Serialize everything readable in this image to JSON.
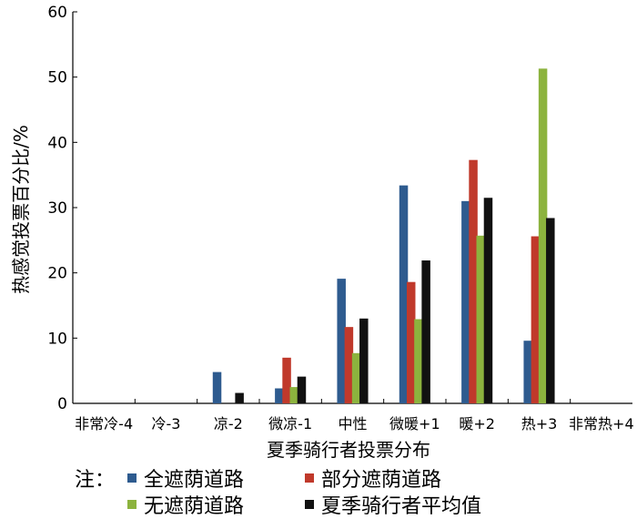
{
  "chart_data": {
    "type": "bar",
    "title": "",
    "xlabel": "夏季骑行者投票分布",
    "ylabel": "热感觉投票百分比/%",
    "ylim": [
      0,
      60
    ],
    "yticks": [
      0,
      10,
      20,
      30,
      40,
      50,
      60
    ],
    "categories": [
      "非常冷-4",
      "冷-3",
      "凉-2",
      "微凉-1",
      "中性",
      "微暖+1",
      "暖+2",
      "热+3",
      "非常热+4"
    ],
    "series": [
      {
        "name": "全遮荫道路",
        "color": "#2e5b8f",
        "values": [
          0,
          0,
          4.8,
          2.3,
          19.1,
          33.4,
          31.0,
          9.6,
          0
        ]
      },
      {
        "name": "部分遮荫道路",
        "color": "#c0392b",
        "values": [
          0,
          0,
          0,
          7.0,
          11.7,
          18.6,
          37.3,
          25.6,
          0
        ]
      },
      {
        "name": "无遮荫道路",
        "color": "#8cb33e",
        "values": [
          0,
          0,
          0,
          2.5,
          7.7,
          12.9,
          25.7,
          51.3,
          0
        ]
      },
      {
        "name": "夏季骑行者平均值",
        "color": "#111111",
        "values": [
          0,
          0,
          1.6,
          4.1,
          13.0,
          21.9,
          31.5,
          28.4,
          0
        ]
      }
    ],
    "grid": false,
    "legend_position": "bottom"
  },
  "legend": {
    "note_label": "注："
  }
}
